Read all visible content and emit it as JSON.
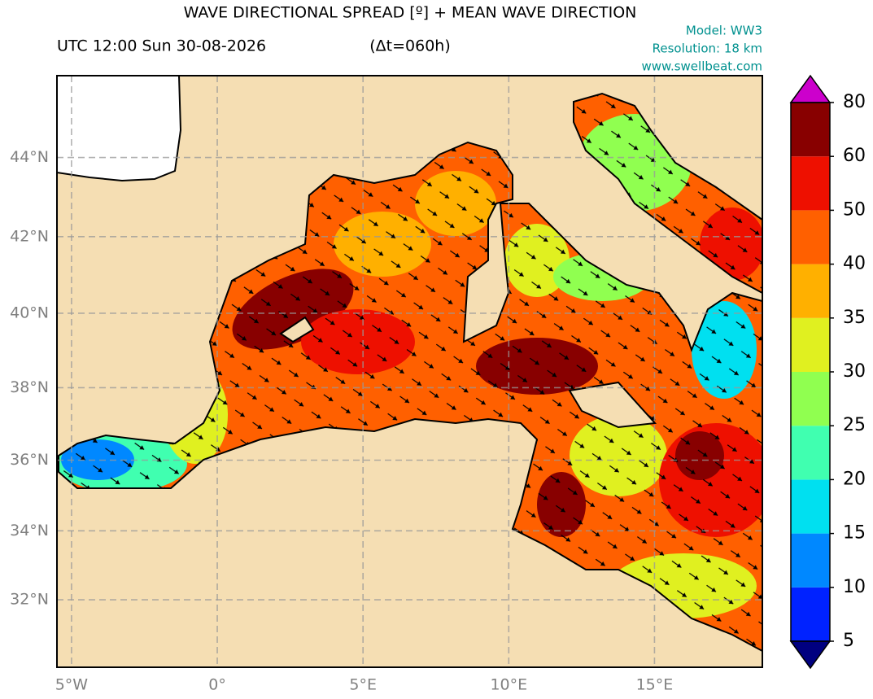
{
  "header": {
    "title": "WAVE DIRECTIONAL SPREAD [º] + MEAN WAVE DIRECTION",
    "time": "UTC 12:00 Sun 30-08-2026",
    "lead": "(Δt=060h)",
    "info": [
      "Model: WW3",
      "Resolution: 18 km",
      "www.swellbeat.com"
    ]
  },
  "map": {
    "xlim": [
      -5.5,
      18.7
    ],
    "ylim": [
      30,
      46
    ],
    "xticks": [
      {
        "value": -5,
        "label": "5°W"
      },
      {
        "value": 0,
        "label": "0°"
      },
      {
        "value": 5,
        "label": "5°E"
      },
      {
        "value": 10,
        "label": "10°E"
      },
      {
        "value": 15,
        "label": "15°E"
      }
    ],
    "yticks": [
      {
        "value": 32,
        "label": "32°N"
      },
      {
        "value": 34,
        "label": "34°N"
      },
      {
        "value": 36,
        "label": "36°N"
      },
      {
        "value": 38,
        "label": "38°N"
      },
      {
        "value": 40,
        "label": "40°N"
      },
      {
        "value": 42,
        "label": "42°N"
      },
      {
        "value": 44,
        "label": "44°N"
      }
    ],
    "grid": true
  },
  "colorbar": {
    "levels": [
      5,
      10,
      15,
      20,
      25,
      30,
      35,
      40,
      50,
      60,
      80
    ],
    "colors": [
      "#0022ff",
      "#0088ff",
      "#00e0f0",
      "#40ffb0",
      "#90ff50",
      "#e0f020",
      "#ffb000",
      "#ff6000",
      "#ee1000",
      "#880000"
    ],
    "under": "#000080",
    "over": "#cc00cc"
  }
}
